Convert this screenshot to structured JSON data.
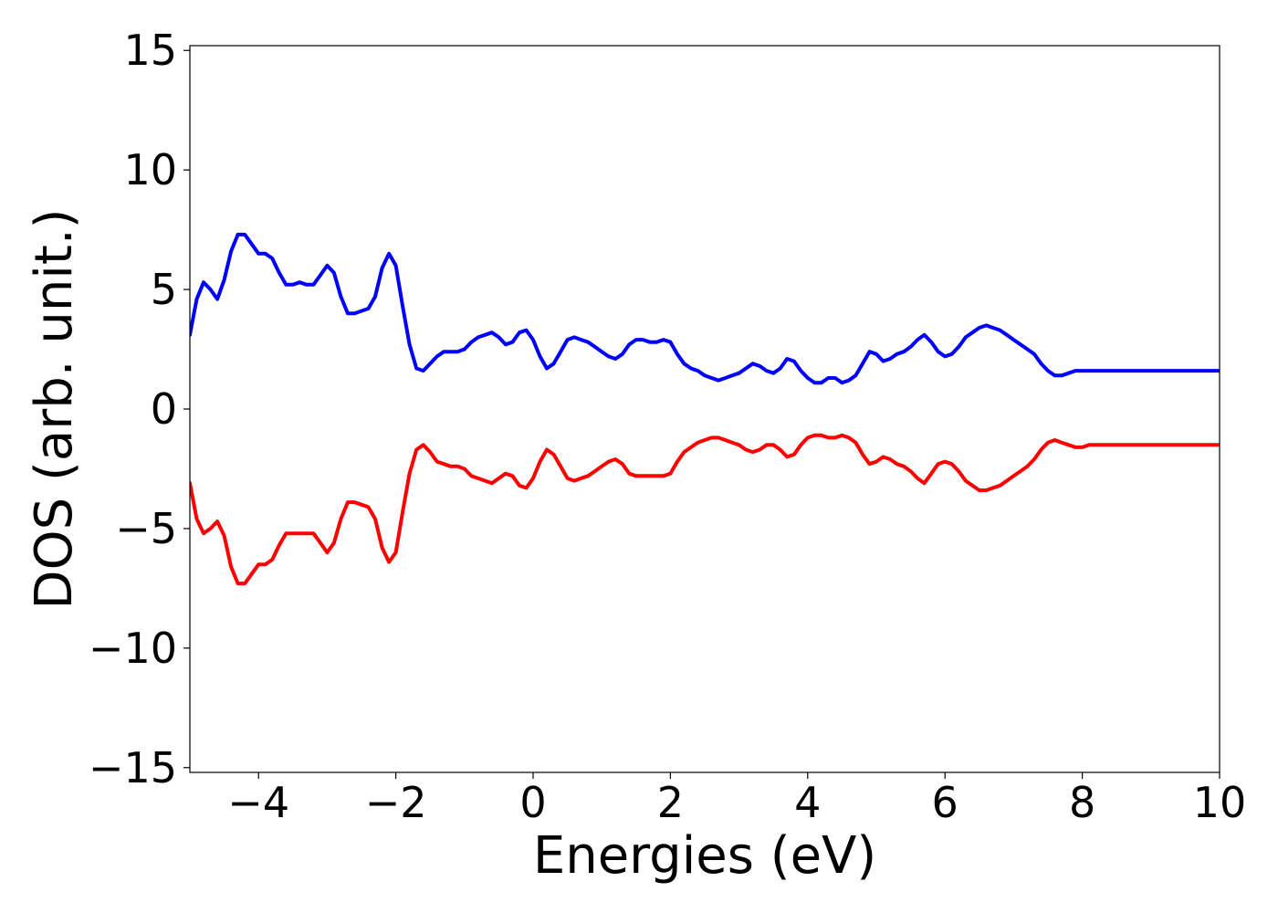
{
  "chart_data": {
    "type": "line",
    "title": "",
    "xlabel": "Energies (eV)",
    "ylabel": "DOS (arb. unit.)",
    "xlim": [
      -5,
      10
    ],
    "ylim": [
      -15.2,
      15.2
    ],
    "xticks": [
      -4,
      -2,
      0,
      2,
      4,
      6,
      8,
      10
    ],
    "xtick_labels": [
      "−4",
      "−2",
      "0",
      "2",
      "4",
      "6",
      "8",
      "10"
    ],
    "yticks": [
      15,
      10,
      5,
      0,
      -5,
      -10,
      -15
    ],
    "ytick_labels": [
      "15",
      "10",
      "5",
      "0",
      "−5",
      "−10",
      "−15"
    ],
    "grid": false,
    "legend": "none",
    "series": [
      {
        "color": "#0000ff",
        "x": [
          -5.0,
          -4.9,
          -4.8,
          -4.7,
          -4.6,
          -4.5,
          -4.4,
          -4.3,
          -4.2,
          -4.1,
          -4.0,
          -3.9,
          -3.8,
          -3.7,
          -3.6,
          -3.5,
          -3.4,
          -3.3,
          -3.2,
          -3.1,
          -3.0,
          -2.9,
          -2.8,
          -2.7,
          -2.6,
          -2.5,
          -2.4,
          -2.3,
          -2.2,
          -2.1,
          -2.0,
          -1.9,
          -1.8,
          -1.7,
          -1.6,
          -1.5,
          -1.4,
          -1.3,
          -1.2,
          -1.1,
          -1.0,
          -0.9,
          -0.8,
          -0.7,
          -0.6,
          -0.5,
          -0.4,
          -0.3,
          -0.2,
          -0.1,
          0.0,
          0.1,
          0.2,
          0.3,
          0.4,
          0.5,
          0.6,
          0.7,
          0.8,
          0.9,
          1.0,
          1.1,
          1.2,
          1.3,
          1.4,
          1.5,
          1.6,
          1.7,
          1.8,
          1.9,
          2.0,
          2.1,
          2.2,
          2.3,
          2.4,
          2.5,
          2.6,
          2.7,
          2.8,
          2.9,
          3.0,
          3.1,
          3.2,
          3.3,
          3.4,
          3.5,
          3.6,
          3.7,
          3.8,
          3.9,
          4.0,
          4.1,
          4.2,
          4.3,
          4.4,
          4.5,
          4.6,
          4.7,
          4.8,
          4.9,
          5.0,
          5.1,
          5.2,
          5.3,
          5.4,
          5.5,
          5.6,
          5.7,
          5.8,
          5.9,
          6.0,
          6.1,
          6.2,
          6.3,
          6.4,
          6.5,
          6.6,
          6.7,
          6.8,
          6.9,
          7.0,
          7.1,
          7.2,
          7.3,
          7.4,
          7.5,
          7.6,
          7.7,
          7.8,
          7.9,
          8.0,
          8.1,
          8.2,
          8.3,
          8.4,
          8.5,
          8.6,
          8.7,
          8.8,
          8.9,
          9.0,
          9.1,
          9.2,
          9.3,
          9.4,
          9.5,
          9.6,
          9.7,
          9.8,
          9.9,
          10.0
        ],
        "values": [
          3.1,
          4.6,
          5.3,
          5.0,
          4.6,
          5.4,
          6.6,
          7.3,
          7.3,
          6.9,
          6.5,
          6.5,
          6.3,
          5.7,
          5.2,
          5.2,
          5.3,
          5.2,
          5.2,
          5.6,
          6.0,
          5.7,
          4.7,
          4.0,
          4.0,
          4.1,
          4.2,
          4.7,
          5.9,
          6.5,
          6.0,
          4.3,
          2.7,
          1.7,
          1.6,
          1.9,
          2.2,
          2.4,
          2.4,
          2.4,
          2.5,
          2.8,
          3.0,
          3.1,
          3.2,
          3.0,
          2.7,
          2.8,
          3.2,
          3.3,
          2.9,
          2.2,
          1.7,
          1.9,
          2.4,
          2.9,
          3.0,
          2.9,
          2.8,
          2.6,
          2.4,
          2.2,
          2.1,
          2.3,
          2.7,
          2.9,
          2.9,
          2.8,
          2.8,
          2.9,
          2.8,
          2.3,
          1.9,
          1.7,
          1.6,
          1.4,
          1.3,
          1.2,
          1.3,
          1.4,
          1.5,
          1.7,
          1.9,
          1.8,
          1.6,
          1.5,
          1.7,
          2.1,
          2.0,
          1.6,
          1.3,
          1.1,
          1.1,
          1.3,
          1.3,
          1.1,
          1.2,
          1.4,
          1.9,
          2.4,
          2.3,
          2.0,
          2.1,
          2.3,
          2.4,
          2.6,
          2.9,
          3.1,
          2.8,
          2.4,
          2.2,
          2.3,
          2.6,
          3.0,
          3.2,
          3.4,
          3.5,
          3.4,
          3.3,
          3.1,
          2.9,
          2.7,
          2.5,
          2.3,
          1.9,
          1.6,
          1.4,
          1.4,
          1.5,
          1.6,
          1.6,
          1.6,
          1.6,
          1.6,
          1.6,
          1.6,
          1.6,
          1.6,
          1.6,
          1.6,
          1.6,
          1.6,
          1.6,
          1.6,
          1.6,
          1.6,
          1.6,
          1.6,
          1.6,
          1.6,
          1.6
        ]
      },
      {
        "color": "#ff0000",
        "x": [
          -5.0,
          -4.9,
          -4.8,
          -4.7,
          -4.6,
          -4.5,
          -4.4,
          -4.3,
          -4.2,
          -4.1,
          -4.0,
          -3.9,
          -3.8,
          -3.7,
          -3.6,
          -3.5,
          -3.4,
          -3.3,
          -3.2,
          -3.1,
          -3.0,
          -2.9,
          -2.8,
          -2.7,
          -2.6,
          -2.5,
          -2.4,
          -2.3,
          -2.2,
          -2.1,
          -2.0,
          -1.9,
          -1.8,
          -1.7,
          -1.6,
          -1.5,
          -1.4,
          -1.3,
          -1.2,
          -1.1,
          -1.0,
          -0.9,
          -0.8,
          -0.7,
          -0.6,
          -0.5,
          -0.4,
          -0.3,
          -0.2,
          -0.1,
          0.0,
          0.1,
          0.2,
          0.3,
          0.4,
          0.5,
          0.6,
          0.7,
          0.8,
          0.9,
          1.0,
          1.1,
          1.2,
          1.3,
          1.4,
          1.5,
          1.6,
          1.7,
          1.8,
          1.9,
          2.0,
          2.1,
          2.2,
          2.3,
          2.4,
          2.5,
          2.6,
          2.7,
          2.8,
          2.9,
          3.0,
          3.1,
          3.2,
          3.3,
          3.4,
          3.5,
          3.6,
          3.7,
          3.8,
          3.9,
          4.0,
          4.1,
          4.2,
          4.3,
          4.4,
          4.5,
          4.6,
          4.7,
          4.8,
          4.9,
          5.0,
          5.1,
          5.2,
          5.3,
          5.4,
          5.5,
          5.6,
          5.7,
          5.8,
          5.9,
          6.0,
          6.1,
          6.2,
          6.3,
          6.4,
          6.5,
          6.6,
          6.7,
          6.8,
          6.9,
          7.0,
          7.1,
          7.2,
          7.3,
          7.4,
          7.5,
          7.6,
          7.7,
          7.8,
          7.9,
          8.0,
          8.1,
          8.2,
          8.3,
          8.4,
          8.5,
          8.6,
          8.7,
          8.8,
          8.9,
          9.0,
          9.1,
          9.2,
          9.3,
          9.4,
          9.5,
          9.6,
          9.7,
          9.8,
          9.9,
          10.0
        ],
        "values": [
          -3.1,
          -4.6,
          -5.2,
          -5.0,
          -4.7,
          -5.3,
          -6.6,
          -7.3,
          -7.3,
          -6.9,
          -6.5,
          -6.5,
          -6.3,
          -5.7,
          -5.2,
          -5.2,
          -5.2,
          -5.2,
          -5.2,
          -5.6,
          -6.0,
          -5.6,
          -4.6,
          -3.9,
          -3.9,
          -4.0,
          -4.1,
          -4.6,
          -5.8,
          -6.4,
          -6.0,
          -4.3,
          -2.7,
          -1.7,
          -1.5,
          -1.8,
          -2.2,
          -2.3,
          -2.4,
          -2.4,
          -2.5,
          -2.8,
          -2.9,
          -3.0,
          -3.1,
          -2.9,
          -2.7,
          -2.8,
          -3.2,
          -3.3,
          -2.9,
          -2.2,
          -1.7,
          -1.9,
          -2.4,
          -2.9,
          -3.0,
          -2.9,
          -2.8,
          -2.6,
          -2.4,
          -2.2,
          -2.1,
          -2.3,
          -2.7,
          -2.8,
          -2.8,
          -2.8,
          -2.8,
          -2.8,
          -2.7,
          -2.2,
          -1.8,
          -1.6,
          -1.4,
          -1.3,
          -1.2,
          -1.2,
          -1.3,
          -1.4,
          -1.5,
          -1.7,
          -1.8,
          -1.7,
          -1.5,
          -1.5,
          -1.7,
          -2.0,
          -1.9,
          -1.5,
          -1.2,
          -1.1,
          -1.1,
          -1.2,
          -1.2,
          -1.1,
          -1.2,
          -1.4,
          -1.9,
          -2.3,
          -2.2,
          -2.0,
          -2.1,
          -2.3,
          -2.4,
          -2.6,
          -2.9,
          -3.1,
          -2.7,
          -2.3,
          -2.2,
          -2.3,
          -2.6,
          -3.0,
          -3.2,
          -3.4,
          -3.4,
          -3.3,
          -3.2,
          -3.0,
          -2.8,
          -2.6,
          -2.4,
          -2.1,
          -1.7,
          -1.4,
          -1.3,
          -1.4,
          -1.5,
          -1.6,
          -1.6,
          -1.5,
          -1.5,
          -1.5,
          -1.5,
          -1.5,
          -1.5,
          -1.5,
          -1.5,
          -1.5,
          -1.5,
          -1.5,
          -1.5,
          -1.5,
          -1.5,
          -1.5,
          -1.5,
          -1.5,
          -1.5,
          -1.5,
          -1.5
        ]
      }
    ]
  }
}
